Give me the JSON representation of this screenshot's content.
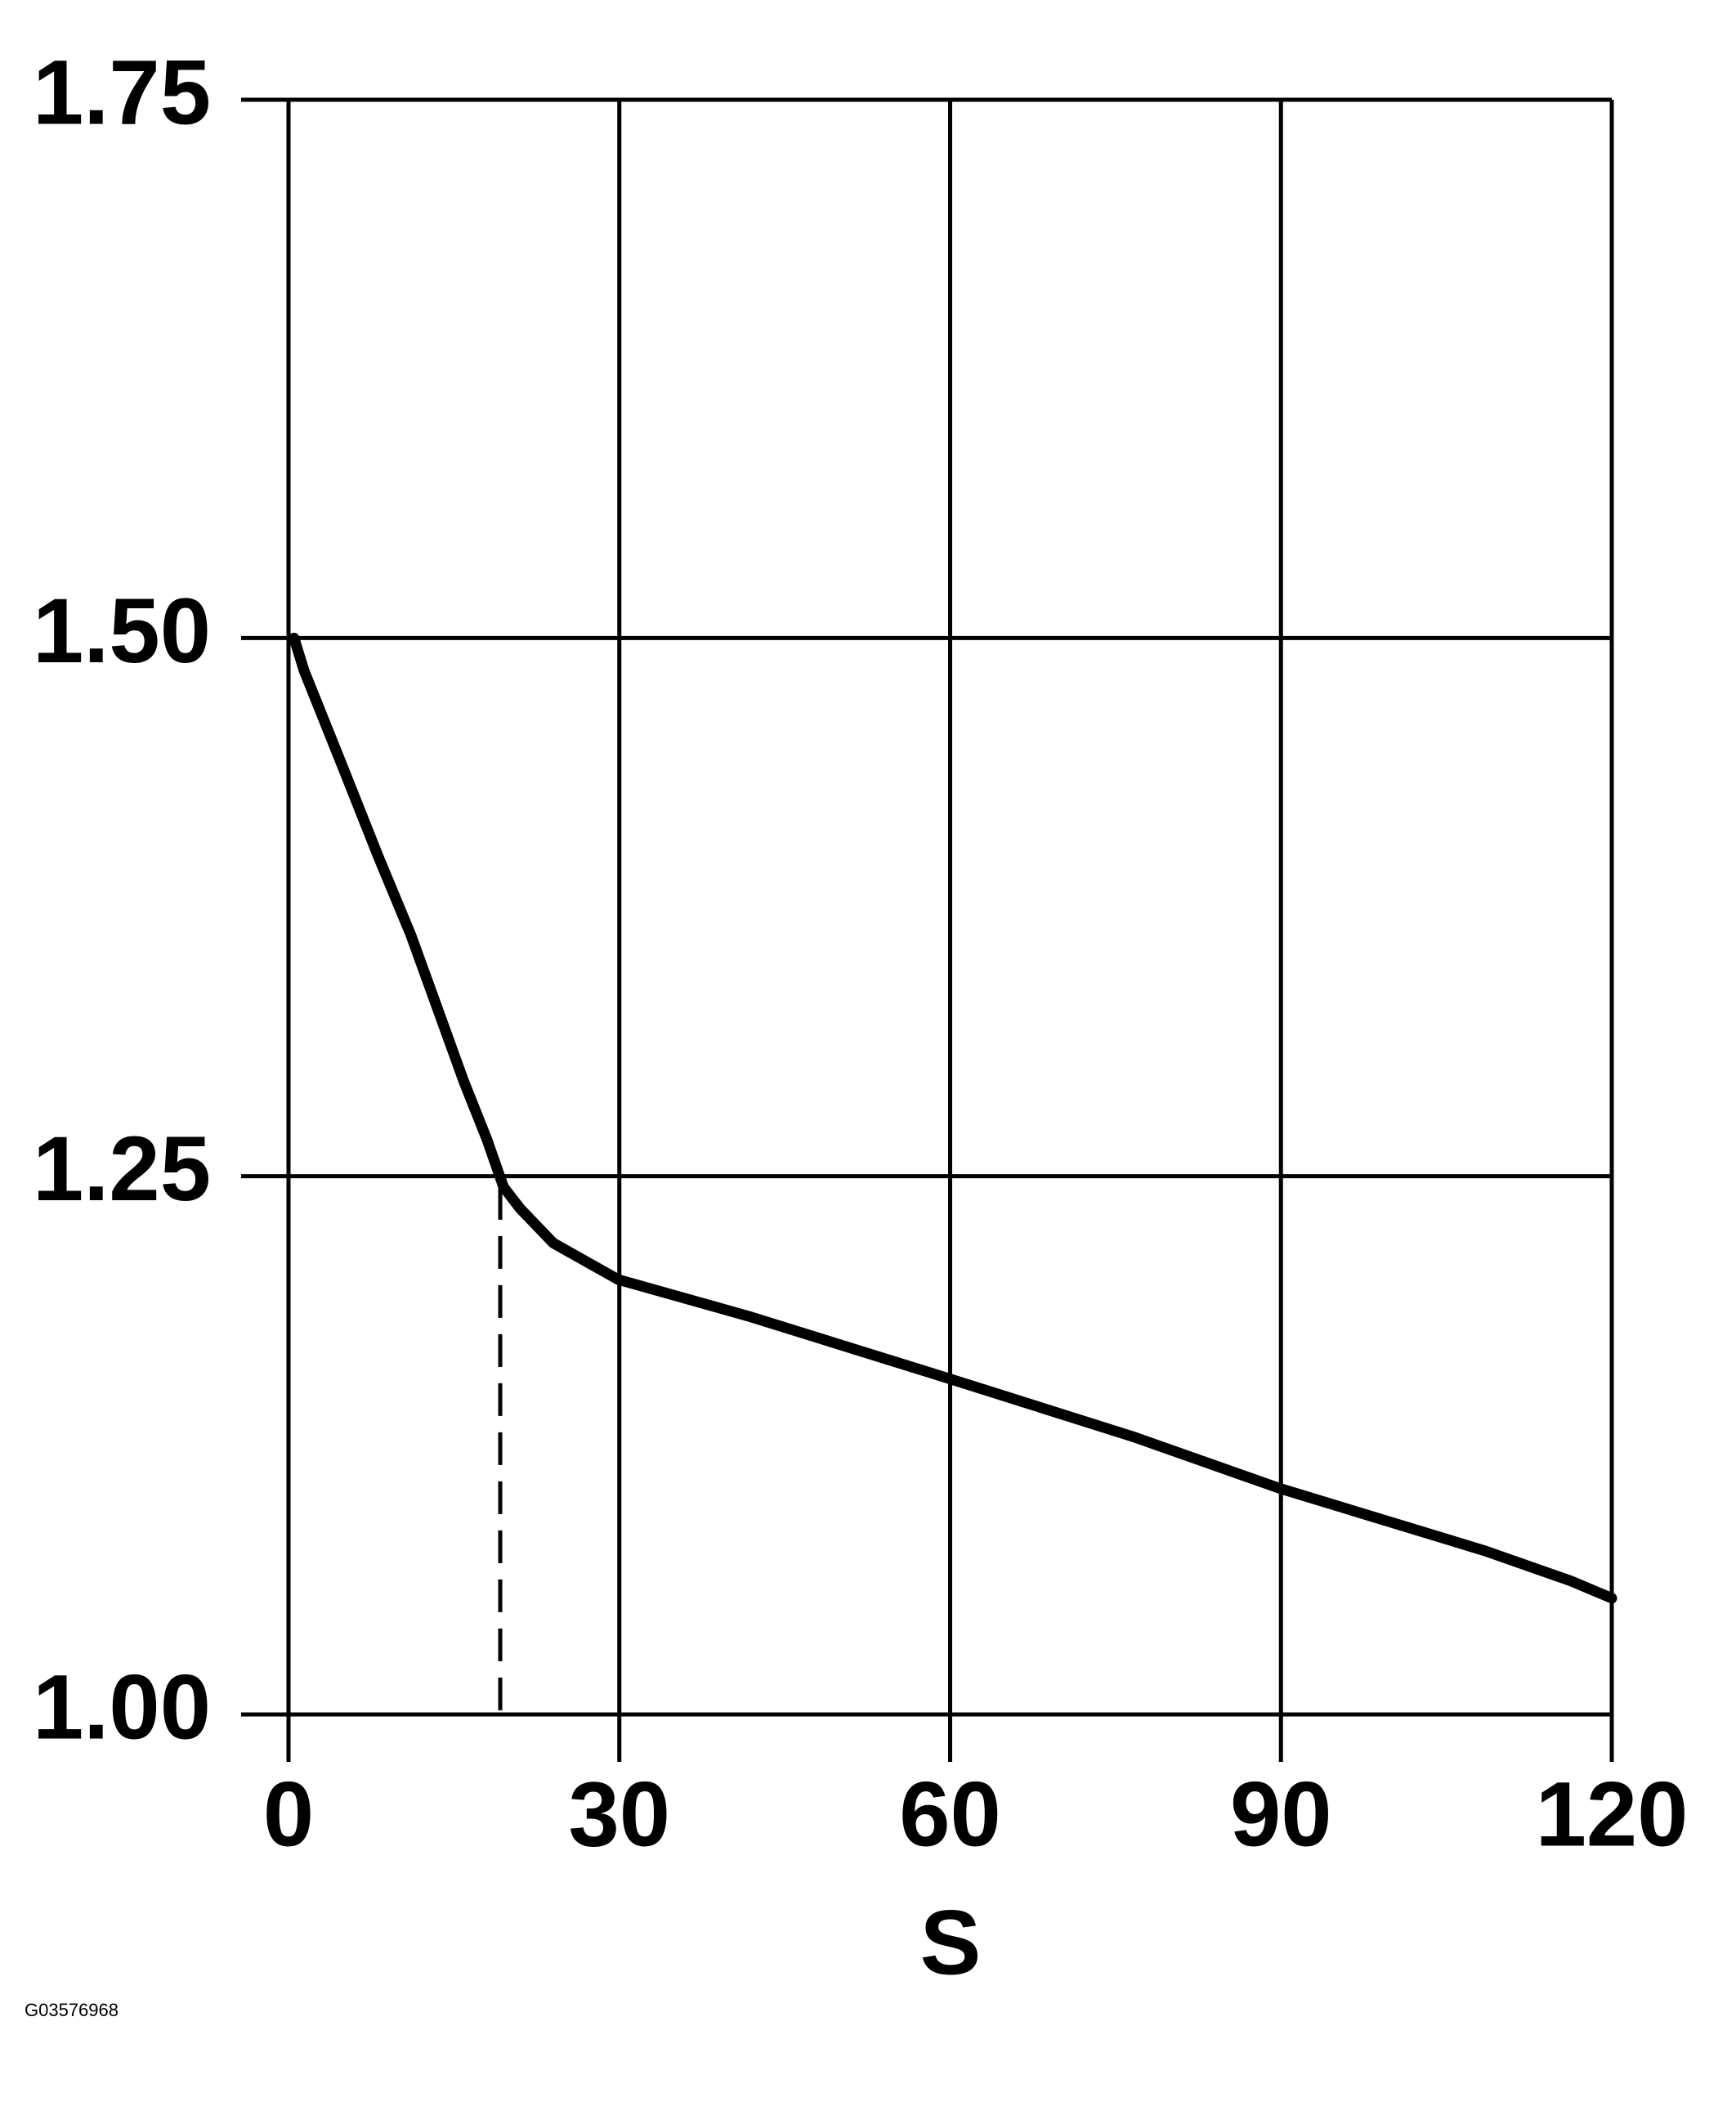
{
  "chart_data": {
    "type": "line",
    "x_label": "S",
    "figure_id": "G03576968",
    "x": [
      0.5,
      1.4,
      5.0,
      8.1,
      11.1,
      13.5,
      15.9,
      18.0,
      19.5,
      21.0,
      24.0,
      29.9,
      41.7,
      59.9,
      76.6,
      89.9,
      108.5,
      116.3,
      120
    ],
    "values": [
      1.5,
      1.485,
      1.439,
      1.399,
      1.362,
      1.328,
      1.294,
      1.267,
      1.245,
      1.235,
      1.219,
      1.202,
      1.185,
      1.156,
      1.129,
      1.105,
      1.076,
      1.062,
      1.054
    ],
    "color": "#000000",
    "reference_line": {
      "x": 19.2,
      "y": 1.245
    },
    "xlim": [
      0,
      120
    ],
    "xticks": [
      0,
      30,
      60,
      90,
      120
    ],
    "ylim": [
      1.0,
      1.75
    ],
    "yticks": [
      {
        "value": 1.0,
        "label": "1.00"
      },
      {
        "value": 1.25,
        "label": "1.25"
      },
      {
        "value": 1.5,
        "label": "1.50"
      },
      {
        "value": 1.75,
        "label": "1.75"
      }
    ],
    "grid": true
  }
}
